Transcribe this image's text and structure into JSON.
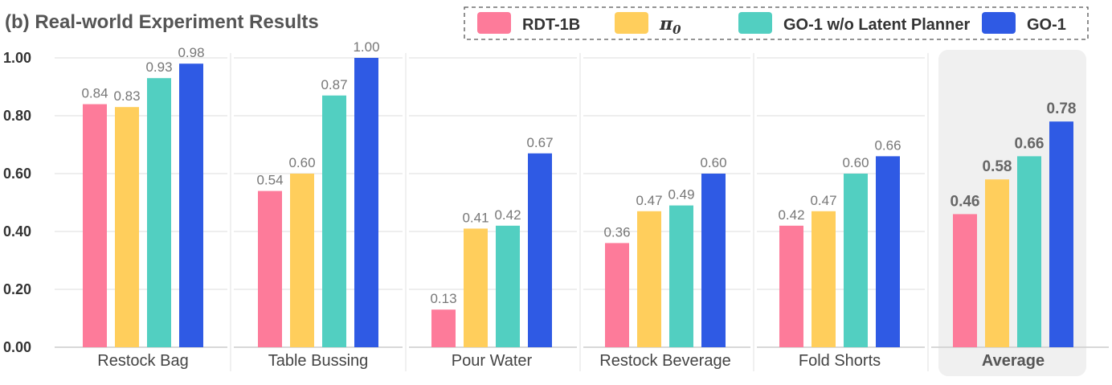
{
  "chart_data": {
    "type": "bar",
    "title": "(b) Real-world Experiment Results",
    "categories": [
      "Restock Bag",
      "Table Bussing",
      "Pour Water",
      "Restock Beverage",
      "Fold Shorts",
      "Average"
    ],
    "highlighted_category": "Average",
    "series": [
      {
        "name": "RDT-1B",
        "color": "#fd7b9a",
        "values": [
          0.84,
          0.54,
          0.13,
          0.36,
          0.42,
          0.46
        ]
      },
      {
        "name": "π_0",
        "name_base": "π",
        "name_sub": "0",
        "color": "#ffce5c",
        "values": [
          0.83,
          0.6,
          0.41,
          0.47,
          0.47,
          0.58
        ]
      },
      {
        "name": "GO-1 w/o Latent Planner",
        "color": "#52cfc1",
        "values": [
          0.93,
          0.87,
          0.42,
          0.49,
          0.6,
          0.66
        ]
      },
      {
        "name": "GO-1",
        "color": "#2f5ae4",
        "values": [
          0.98,
          1.0,
          0.67,
          0.6,
          0.66,
          0.78
        ]
      }
    ],
    "yticks": [
      "0.00",
      "0.20",
      "0.40",
      "0.60",
      "0.80",
      "1.00"
    ],
    "ylim": [
      0,
      1.0
    ],
    "xlabel": "",
    "ylabel": "",
    "grid": "horizontal",
    "legend_position": "top-right",
    "legend_style": "dashed-border",
    "highlight_color": "#f0f0f0"
  }
}
